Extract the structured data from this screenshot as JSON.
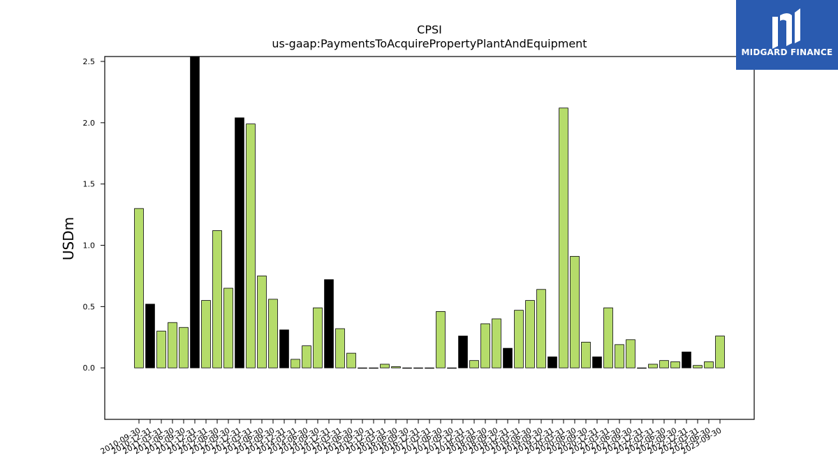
{
  "chart_data": {
    "type": "bar",
    "title": "CPSI",
    "subtitle": "us-gaap:PaymentsToAcquirePropertyPlantAndEquipment",
    "xlabel": "",
    "ylabel": "USDm",
    "ylim": [
      -0.42,
      2.54
    ],
    "yticks": [
      0.0,
      0.5,
      1.0,
      1.5,
      2.0,
      2.5
    ],
    "ytick_labels": [
      "0.0",
      "0.5",
      "1.0",
      "1.5",
      "2.0",
      "2.5"
    ],
    "grid": false,
    "colors": {
      "quarter": "#b5dc6a",
      "annual": "#000000",
      "edge": "#000000"
    },
    "categories": [
      "2010-09-30",
      "2010-12-31",
      "2011-03-31",
      "2011-06-30",
      "2011-09-30",
      "2011-12-31",
      "2012-03-31",
      "2012-06-30",
      "2012-09-30",
      "2012-12-31",
      "2013-03-31",
      "2013-06-30",
      "2013-09-30",
      "2013-12-31",
      "2014-03-31",
      "2014-06-30",
      "2014-09-30",
      "2014-12-31",
      "2015-03-31",
      "2015-06-30",
      "2015-09-30",
      "2015-12-31",
      "2016-03-31",
      "2016-06-30",
      "2016-09-30",
      "2016-12-31",
      "2017-03-31",
      "2017-06-30",
      "2017-09-30",
      "2017-12-31",
      "2018-03-31",
      "2018-06-30",
      "2018-09-30",
      "2018-12-31",
      "2019-03-31",
      "2019-06-30",
      "2019-09-30",
      "2019-12-31",
      "2020-03-31",
      "2020-06-30",
      "2020-09-30",
      "2020-12-31",
      "2021-03-31",
      "2021-06-30",
      "2021-09-30",
      "2021-12-31",
      "2022-03-31",
      "2022-06-30",
      "2022-09-30",
      "2022-12-31",
      "2023-03-31",
      "2023-06-30",
      "2023-09-30"
    ],
    "values": [
      1.3,
      0.52,
      0.3,
      0.37,
      0.33,
      2.54,
      0.55,
      1.12,
      0.65,
      2.04,
      1.99,
      0.75,
      0.56,
      0.31,
      0.07,
      0.18,
      0.49,
      0.72,
      0.32,
      0.12,
      0.0,
      0.0,
      0.03,
      0.01,
      0.0,
      0.0,
      0.0,
      0.46,
      0.0,
      0.26,
      0.06,
      0.36,
      0.4,
      0.16,
      0.47,
      0.55,
      0.64,
      0.09,
      2.12,
      0.91,
      0.21,
      0.09,
      0.49,
      0.19,
      0.23,
      0.0,
      0.03,
      0.06,
      0.05,
      0.13,
      0.02,
      0.05,
      0.26
    ],
    "highlighted": [
      false,
      true,
      false,
      false,
      false,
      true,
      false,
      false,
      false,
      true,
      false,
      false,
      false,
      true,
      false,
      false,
      false,
      true,
      false,
      false,
      false,
      true,
      false,
      false,
      false,
      true,
      false,
      false,
      false,
      true,
      false,
      false,
      false,
      true,
      false,
      false,
      false,
      true,
      false,
      false,
      false,
      true,
      false,
      false,
      false,
      true,
      false,
      false,
      false,
      true,
      false,
      false,
      false
    ]
  },
  "logo": {
    "text": "MIDGARD FINANCE",
    "icon": "midgard-logo-icon"
  }
}
